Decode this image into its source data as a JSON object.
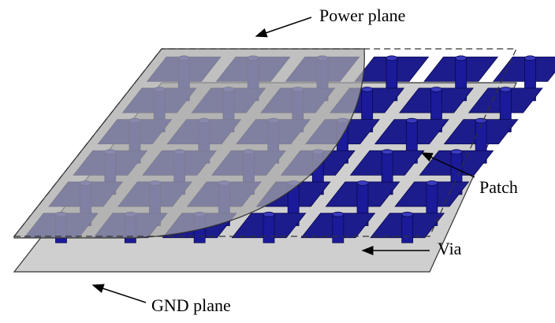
{
  "labels": {
    "power_plane": "Power plane",
    "patch": "Patch",
    "via": "Via",
    "gnd_plane": "GND plane"
  }
}
